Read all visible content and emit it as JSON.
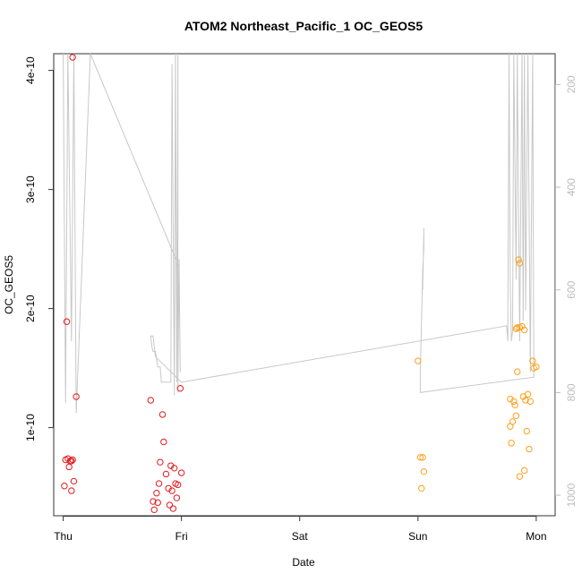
{
  "chart_data": {
    "type": "scatter",
    "title": "ATOM2 Northeast_Pacific_1 OC_GEOS5",
    "xlabel": "Date",
    "ylabel": "OC_GEOS5",
    "x_ticks": [
      "Thu",
      "Fri",
      "Sat",
      "Sun",
      "Mon"
    ],
    "y_ticks": [
      "1e-10",
      "2e-10",
      "3e-10",
      "4e-10"
    ],
    "y_tick_values": [
      1e-10,
      2e-10,
      3e-10,
      4e-10
    ],
    "xlim": [
      -0.08,
      4.16
    ],
    "ylim": [
      2.6e-11,
      4.14e-10
    ],
    "right_axis": {
      "ticks": [
        200,
        400,
        600,
        800,
        1000
      ],
      "lim": [
        1040,
        140
      ],
      "color": "#bdbdbd"
    },
    "grid": false,
    "series": [
      {
        "color": "#e41a1c",
        "points": [
          [
            0.08,
            4.11e-10
          ],
          [
            0.03,
            1.89e-10
          ],
          [
            0.11,
            1.26e-10
          ],
          [
            0.02,
            7.3e-11
          ],
          [
            0.04,
            7.4e-11
          ],
          [
            0.06,
            7.2e-11
          ],
          [
            0.07,
            7.2e-11
          ],
          [
            0.08,
            7.3e-11
          ],
          [
            0.05,
            6.7e-11
          ],
          [
            0.09,
            5.5e-11
          ],
          [
            0.01,
            5.1e-11
          ],
          [
            0.07,
            4.7e-11
          ],
          [
            0.74,
            1.23e-10
          ],
          [
            0.84,
            1.11e-10
          ],
          [
            0.85,
            8.8e-11
          ],
          [
            0.99,
            1.33e-10
          ],
          [
            0.82,
            7.1e-11
          ],
          [
            0.91,
            6.8e-11
          ],
          [
            0.94,
            6.6e-11
          ],
          [
            1.0,
            6.2e-11
          ],
          [
            0.87,
            6.1e-11
          ],
          [
            0.81,
            5.3e-11
          ],
          [
            0.95,
            5.3e-11
          ],
          [
            0.97,
            5.2e-11
          ],
          [
            0.89,
            4.9e-11
          ],
          [
            0.92,
            4.7e-11
          ],
          [
            0.79,
            4.5e-11
          ],
          [
            0.96,
            4.1e-11
          ],
          [
            0.76,
            3.8e-11
          ],
          [
            0.8,
            3.7e-11
          ],
          [
            0.9,
            3.5e-11
          ],
          [
            0.93,
            3.2e-11
          ],
          [
            0.77,
            3.1e-11
          ]
        ]
      },
      {
        "color": "#ff9f1c",
        "points": [
          [
            3.0,
            1.56e-10
          ],
          [
            3.02,
            7.5e-11
          ],
          [
            3.04,
            7.5e-11
          ],
          [
            3.05,
            6.3e-11
          ],
          [
            3.03,
            4.9e-11
          ],
          [
            3.85,
            2.41e-10
          ],
          [
            3.86,
            2.38e-10
          ],
          [
            3.84,
            1.84e-10
          ],
          [
            3.86,
            1.84e-10
          ],
          [
            3.88,
            1.85e-10
          ],
          [
            3.83,
            1.83e-10
          ],
          [
            3.9,
            1.82e-10
          ],
          [
            3.97,
            1.56e-10
          ],
          [
            3.98,
            1.5e-10
          ],
          [
            4.0,
            1.51e-10
          ],
          [
            3.84,
            1.47e-10
          ],
          [
            3.93,
            1.28e-10
          ],
          [
            3.89,
            1.26e-10
          ],
          [
            3.78,
            1.24e-10
          ],
          [
            3.81,
            1.22e-10
          ],
          [
            3.91,
            1.23e-10
          ],
          [
            3.95,
            1.22e-10
          ],
          [
            3.82,
            1.19e-10
          ],
          [
            3.83,
            1.1e-10
          ],
          [
            3.8,
            1.05e-10
          ],
          [
            3.78,
            1.01e-10
          ],
          [
            3.92,
            9.7e-11
          ],
          [
            3.79,
            8.7e-11
          ],
          [
            3.94,
            8.2e-11
          ],
          [
            3.9,
            6.4e-11
          ],
          [
            3.86,
            5.9e-11
          ]
        ]
      },
      {
        "color": "#c8c8c8",
        "axis": "right",
        "line": true,
        "points": [
          [
            0.0,
            140
          ],
          [
            0.02,
            820
          ],
          [
            0.04,
            140
          ],
          [
            0.07,
            700
          ],
          [
            0.09,
            140
          ],
          [
            0.11,
            840
          ],
          [
            0.23,
            140
          ],
          [
            0.98,
            555
          ],
          [
            0.99,
            760
          ],
          [
            0.98,
            540
          ],
          [
            0.97,
            800
          ],
          [
            0.97,
            140
          ],
          [
            0.96,
            780
          ],
          [
            0.95,
            140
          ],
          [
            0.94,
            805
          ],
          [
            0.92,
            160
          ],
          [
            0.91,
            780
          ],
          [
            0.83,
            780
          ],
          [
            0.82,
            750
          ],
          [
            0.8,
            750
          ],
          [
            0.78,
            720
          ],
          [
            0.76,
            720
          ],
          [
            0.75,
            710
          ],
          [
            0.74,
            690
          ],
          [
            0.76,
            690
          ],
          [
            0.78,
            730
          ],
          [
            1.0,
            780
          ],
          [
            3.75,
            670
          ],
          [
            3.76,
            700
          ],
          [
            3.76,
            660
          ],
          [
            3.77,
            140
          ],
          [
            3.78,
            580
          ],
          [
            3.79,
            700
          ],
          [
            3.8,
            680
          ],
          [
            3.81,
            140
          ],
          [
            3.83,
            580
          ],
          [
            3.84,
            140
          ],
          [
            3.86,
            700
          ],
          [
            3.88,
            140
          ],
          [
            3.89,
            660
          ],
          [
            3.9,
            140
          ],
          [
            3.91,
            640
          ],
          [
            3.93,
            140
          ],
          [
            3.95,
            760
          ],
          [
            3.97,
            140
          ],
          [
            3.98,
            770
          ],
          [
            3.02,
            800
          ],
          [
            3.02,
            760
          ],
          [
            3.04,
            560
          ],
          [
            3.05,
            520
          ],
          [
            3.05,
            480
          ],
          [
            3.04,
            600
          ]
        ]
      }
    ]
  }
}
